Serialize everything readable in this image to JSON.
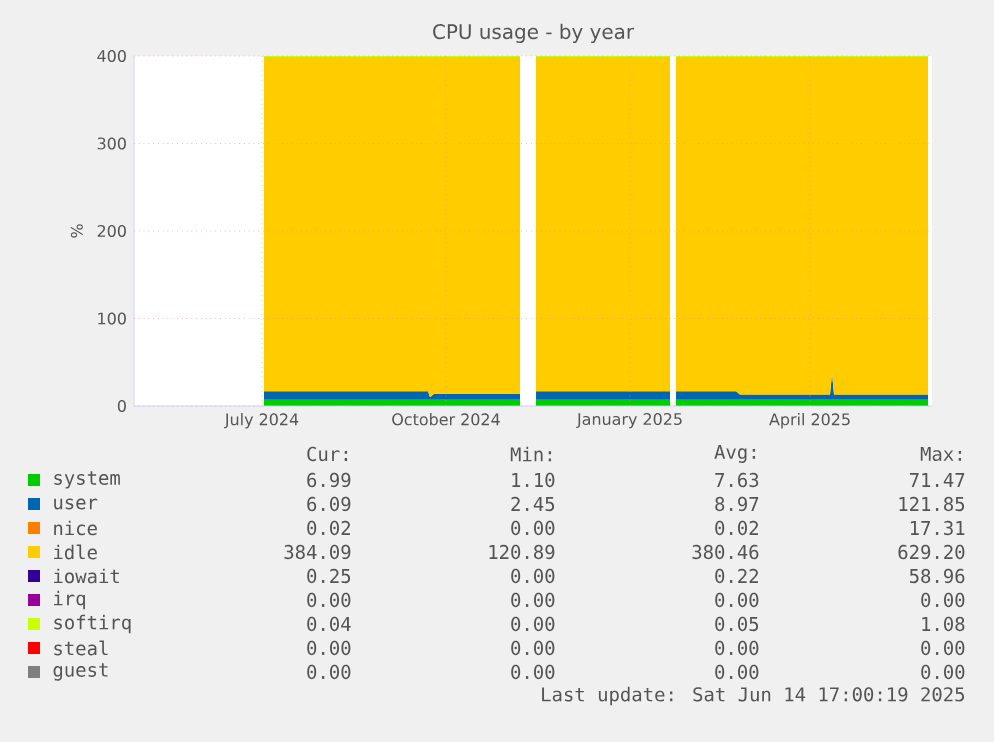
{
  "chart_data": {
    "type": "area",
    "stacked": true,
    "title": "CPU usage - by year",
    "ylabel": "%",
    "x": [
      "2024-07-17",
      "2024-08-15",
      "2024-09-15",
      "2024-10-07",
      "2024-10-08",
      "2024-10-10",
      "2024-11-01",
      "2024-11-22",
      "2024-11-26",
      "2024-11-30",
      "2024-12-15",
      "2025-01-15",
      "2025-02-05",
      "2025-02-06",
      "2025-02-08",
      "2025-03-01",
      "2025-03-10",
      "2025-03-12",
      "2025-04-01",
      "2025-04-26",
      "2025-04-27",
      "2025-04-28",
      "2025-05-15",
      "2025-06-14"
    ],
    "xlim": [
      "2024-05-13",
      "2025-06-16"
    ],
    "xticks": [
      {
        "value": "2024-07-16",
        "label": "July 2024"
      },
      {
        "value": "2024-10-16",
        "label": "October 2024"
      },
      {
        "value": "2025-01-16",
        "label": "January 2025"
      },
      {
        "value": "2025-04-16",
        "label": "April 2025"
      }
    ],
    "ylim": [
      0,
      400
    ],
    "yticks": [
      0,
      100,
      200,
      300,
      400
    ],
    "grid": true,
    "legend": "bottom",
    "series": [
      {
        "name": "system",
        "color": "#00cc00",
        "values": [
          7,
          7,
          7,
          7,
          7,
          7,
          7,
          7,
          null,
          7,
          7,
          7,
          7,
          null,
          7,
          7,
          7,
          7,
          7,
          7,
          7,
          7,
          7,
          7
        ]
      },
      {
        "name": "user",
        "color": "#0066b3",
        "values": [
          10,
          10,
          10,
          10,
          3,
          7,
          7,
          7,
          null,
          10,
          10,
          10,
          10,
          null,
          10,
          10,
          10,
          6,
          6,
          6,
          30,
          6,
          6,
          6
        ]
      },
      {
        "name": "nice",
        "color": "#ff8000",
        "values": [
          null,
          null,
          null,
          null,
          null,
          null,
          null,
          null,
          null,
          null,
          null,
          null,
          null,
          null,
          null,
          null,
          null,
          null,
          null,
          null,
          null,
          null,
          null,
          null
        ]
      },
      {
        "name": "idle",
        "color": "#ffcc00",
        "values": [
          382,
          382,
          382,
          382,
          389,
          385,
          385,
          385,
          null,
          382,
          382,
          382,
          382,
          null,
          382,
          382,
          382,
          386,
          386,
          386,
          362,
          386,
          386,
          386
        ]
      },
      {
        "name": "iowait",
        "color": "#330099",
        "values": [
          null,
          null,
          null,
          null,
          null,
          null,
          null,
          null,
          null,
          null,
          null,
          null,
          null,
          null,
          null,
          null,
          null,
          null,
          null,
          null,
          null,
          null,
          null,
          null
        ]
      },
      {
        "name": "irq",
        "color": "#990099",
        "values": [
          null,
          null,
          null,
          null,
          null,
          null,
          null,
          null,
          null,
          null,
          null,
          null,
          null,
          null,
          null,
          null,
          null,
          null,
          null,
          null,
          null,
          null,
          null,
          null
        ]
      },
      {
        "name": "softirq",
        "color": "#ccff00",
        "values": [
          1,
          1,
          1,
          1,
          1,
          1,
          1,
          1,
          null,
          1,
          1,
          1,
          1,
          null,
          1,
          1,
          1,
          1,
          1,
          1,
          1,
          1,
          1,
          1
        ]
      },
      {
        "name": "steal",
        "color": "#ff0000",
        "values": [
          null,
          null,
          null,
          null,
          null,
          null,
          null,
          null,
          null,
          null,
          null,
          null,
          null,
          null,
          null,
          null,
          null,
          null,
          null,
          null,
          null,
          null,
          null,
          null
        ]
      },
      {
        "name": "guest",
        "color": "#808080",
        "values": [
          null,
          null,
          null,
          null,
          null,
          null,
          null,
          null,
          null,
          null,
          null,
          null,
          null,
          null,
          null,
          null,
          null,
          null,
          null,
          null,
          null,
          null,
          null,
          null
        ]
      }
    ],
    "annotations": [
      "Cur:",
      "Min:",
      "Avg:",
      "Max:",
      "6.99",
      "1.10",
      "7.63",
      "71.47",
      "6.09",
      "2.45",
      "8.97",
      "121.85",
      "0.02",
      "0.00",
      "0.02",
      "17.31",
      "384.09",
      "120.89",
      "380.46",
      "629.20",
      "0.25",
      "0.00",
      "0.22",
      "58.96",
      "0.00",
      "0.00",
      "0.00",
      "0.00",
      "0.04",
      "0.00",
      "0.05",
      "1.08",
      "0.00",
      "0.00",
      "0.00",
      "0.00",
      "0.00",
      "0.00",
      "0.00",
      "0.00",
      "Last update: Sat Jun 14 17:00:19 2025"
    ]
  }
}
